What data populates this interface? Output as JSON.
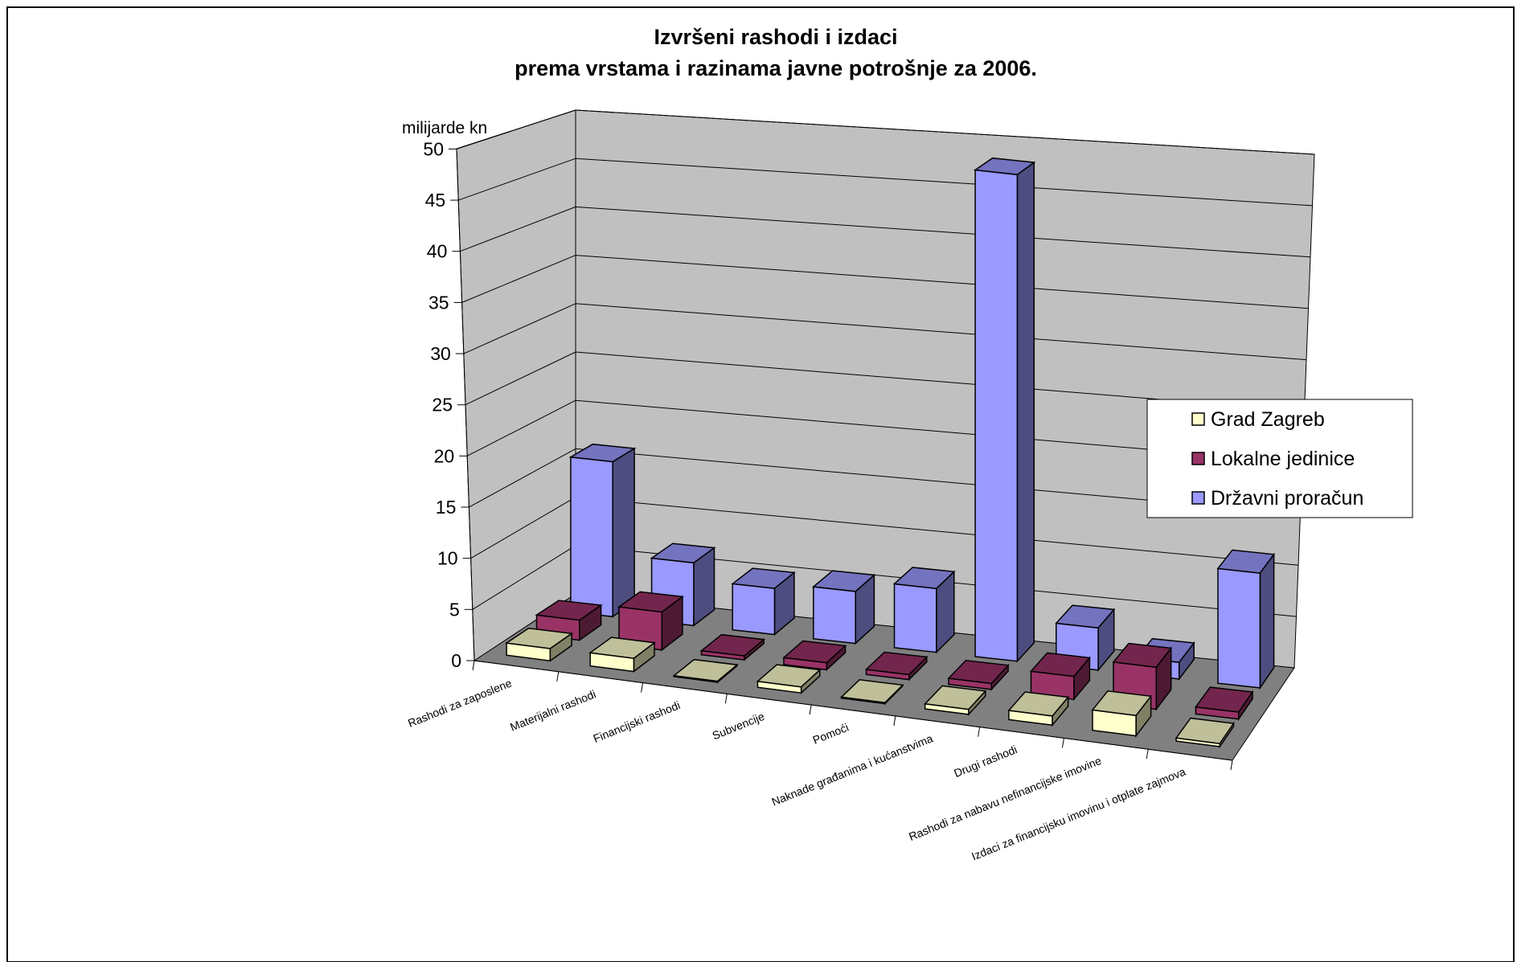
{
  "chart_data": {
    "type": "bar",
    "title_lines": [
      "Izvršeni rashodi i izdaci",
      "prema vrstama i razinama javne potrošnje za 2006."
    ],
    "ylabel": "milijarde kn",
    "ylim": [
      0,
      50
    ],
    "y_ticks": [
      "0",
      "5",
      "10",
      "15",
      "20",
      "25",
      "30",
      "35",
      "40",
      "45",
      "50"
    ],
    "grid": true,
    "legend_position": "right",
    "categories": [
      "Rashodi za zaposlene",
      "Materijalni rashodi",
      "Financijski rashodi",
      "Subvencije",
      "Pomoći",
      "Naknade građanima i kućanstvima",
      "Drugi rashodi",
      "Rashodi za nabavu nefinancijske imovine",
      "Izdaci za financijsku imovinu i otplate zajmova"
    ],
    "series": [
      {
        "name": "Grad Zagreb",
        "color": "#ffffcc",
        "values": [
          1.2,
          1.3,
          0.1,
          0.6,
          0.1,
          0.5,
          0.9,
          2.0,
          0.3
        ]
      },
      {
        "name": "Lokalne jedinice",
        "color": "#993366",
        "values": [
          2.0,
          3.8,
          0.4,
          0.7,
          0.5,
          0.6,
          2.3,
          4.2,
          0.7
        ]
      },
      {
        "name": "Državni proračun",
        "color": "#9999ff",
        "values": [
          15.8,
          6.4,
          4.7,
          5.3,
          6.5,
          49.6,
          4.3,
          1.7,
          11.7
        ]
      }
    ]
  }
}
